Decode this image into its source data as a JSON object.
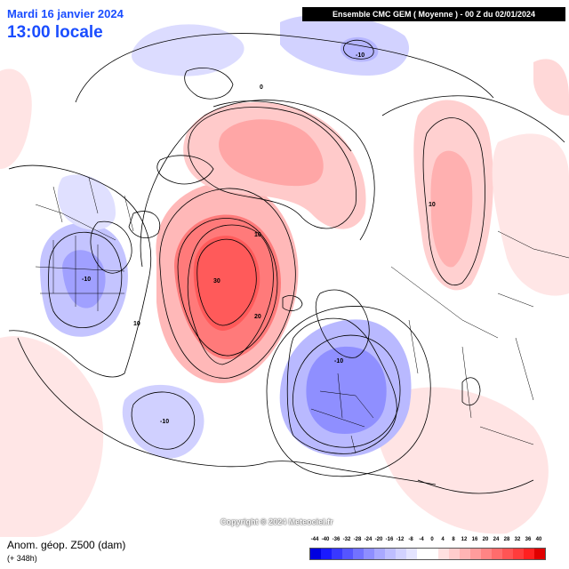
{
  "header": {
    "date": "Mardi 16 janvier 2024",
    "time": "13:00 locale",
    "run": "Ensemble CMC GEM  ( Moyenne )  -  00 Z du 02/01/2024"
  },
  "footer": {
    "title": "Anom. géop. Z500 (dam)",
    "lead": "(+ 348h)",
    "copyright": "Copyright © 2024 Meteociel.fr"
  },
  "contour_labels": [
    "-10",
    "0",
    "10",
    "30",
    "20",
    "10",
    "-10",
    "-10",
    "-10",
    "10"
  ],
  "colorbar": {
    "ticks": [
      "-44",
      "-40",
      "-36",
      "-32",
      "-28",
      "-24",
      "-20",
      "-16",
      "-12",
      "-8",
      "-4",
      "0",
      "4",
      "8",
      "12",
      "16",
      "20",
      "24",
      "28",
      "32",
      "36",
      "40"
    ],
    "colors": [
      "#0000e0",
      "#1a1aff",
      "#3838ff",
      "#5555ff",
      "#7272ff",
      "#8e8eff",
      "#a8a8ff",
      "#bebeff",
      "#d2d2ff",
      "#e4e4ff",
      "#ffffff",
      "#ffffff",
      "#ffe0e0",
      "#ffcccc",
      "#ffb4b4",
      "#ff9c9c",
      "#ff8484",
      "#ff6c6c",
      "#ff5454",
      "#ff3c3c",
      "#ff2020",
      "#e00000"
    ]
  }
}
